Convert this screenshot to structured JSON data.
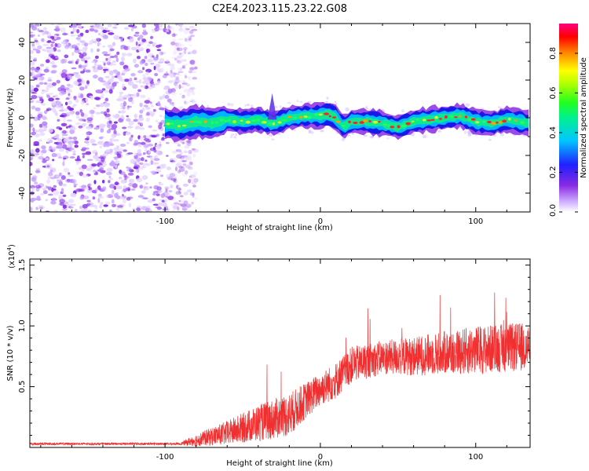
{
  "title": "C2E4.2023.115.23.22.G08",
  "chart_data": [
    {
      "type": "heatmap",
      "name": "spectrogram",
      "xlabel": "Height of straight line (km)",
      "ylabel": "Frequency (Hz)",
      "xlim": [
        -187,
        135
      ],
      "ylim": [
        -50,
        50
      ],
      "x_ticks": [
        -100,
        0,
        100
      ],
      "y_ticks": [
        -40,
        -20,
        0,
        20,
        40
      ],
      "noise_region_x": [
        -187,
        -88
      ],
      "signal_start_x": -100,
      "ridge": {
        "x": [
          -100,
          -90,
          -80,
          -70,
          -60,
          -50,
          -40,
          -30,
          -20,
          -10,
          0,
          5,
          10,
          15,
          20,
          30,
          40,
          50,
          60,
          70,
          80,
          90,
          100,
          110,
          120,
          135
        ],
        "freq": [
          -3,
          -4,
          -2,
          -3,
          -1,
          -2,
          -1,
          -3,
          0,
          1,
          1,
          2,
          0,
          -5,
          -2,
          -2,
          -3,
          -5,
          -2,
          -1,
          0,
          1,
          -2,
          -3,
          -1,
          -3
        ]
      },
      "colorbar": {
        "label": "Normalized spectral amplitude",
        "range": [
          0.0,
          0.95
        ],
        "ticks": [
          0.0,
          0.2,
          0.4,
          0.6,
          0.8
        ]
      }
    },
    {
      "type": "line",
      "name": "snr",
      "xlabel": "Height of straight line (km)",
      "ylabel": "SNR (10 * v/v)",
      "y_multiplier": "(x10",
      "y_multiplier_exp": "4",
      "y_multiplier_close": ")",
      "xlim": [
        -187,
        135
      ],
      "ylim": [
        0,
        1.55
      ],
      "x_ticks": [
        -100,
        0,
        100
      ],
      "y_ticks": [
        0.5,
        1.0,
        1.5
      ],
      "color": "#f03030",
      "trend": {
        "x": [
          -187,
          -90,
          -80,
          -60,
          -40,
          -20,
          -10,
          0,
          10,
          20,
          40,
          60,
          80,
          100,
          120,
          135
        ],
        "mean": [
          0.03,
          0.03,
          0.06,
          0.12,
          0.2,
          0.27,
          0.38,
          0.48,
          0.55,
          0.68,
          0.74,
          0.75,
          0.78,
          0.8,
          0.82,
          0.83
        ],
        "spread": [
          0.01,
          0.01,
          0.05,
          0.1,
          0.15,
          0.18,
          0.15,
          0.14,
          0.15,
          0.15,
          0.14,
          0.16,
          0.18,
          0.2,
          0.2,
          0.2
        ]
      }
    }
  ]
}
